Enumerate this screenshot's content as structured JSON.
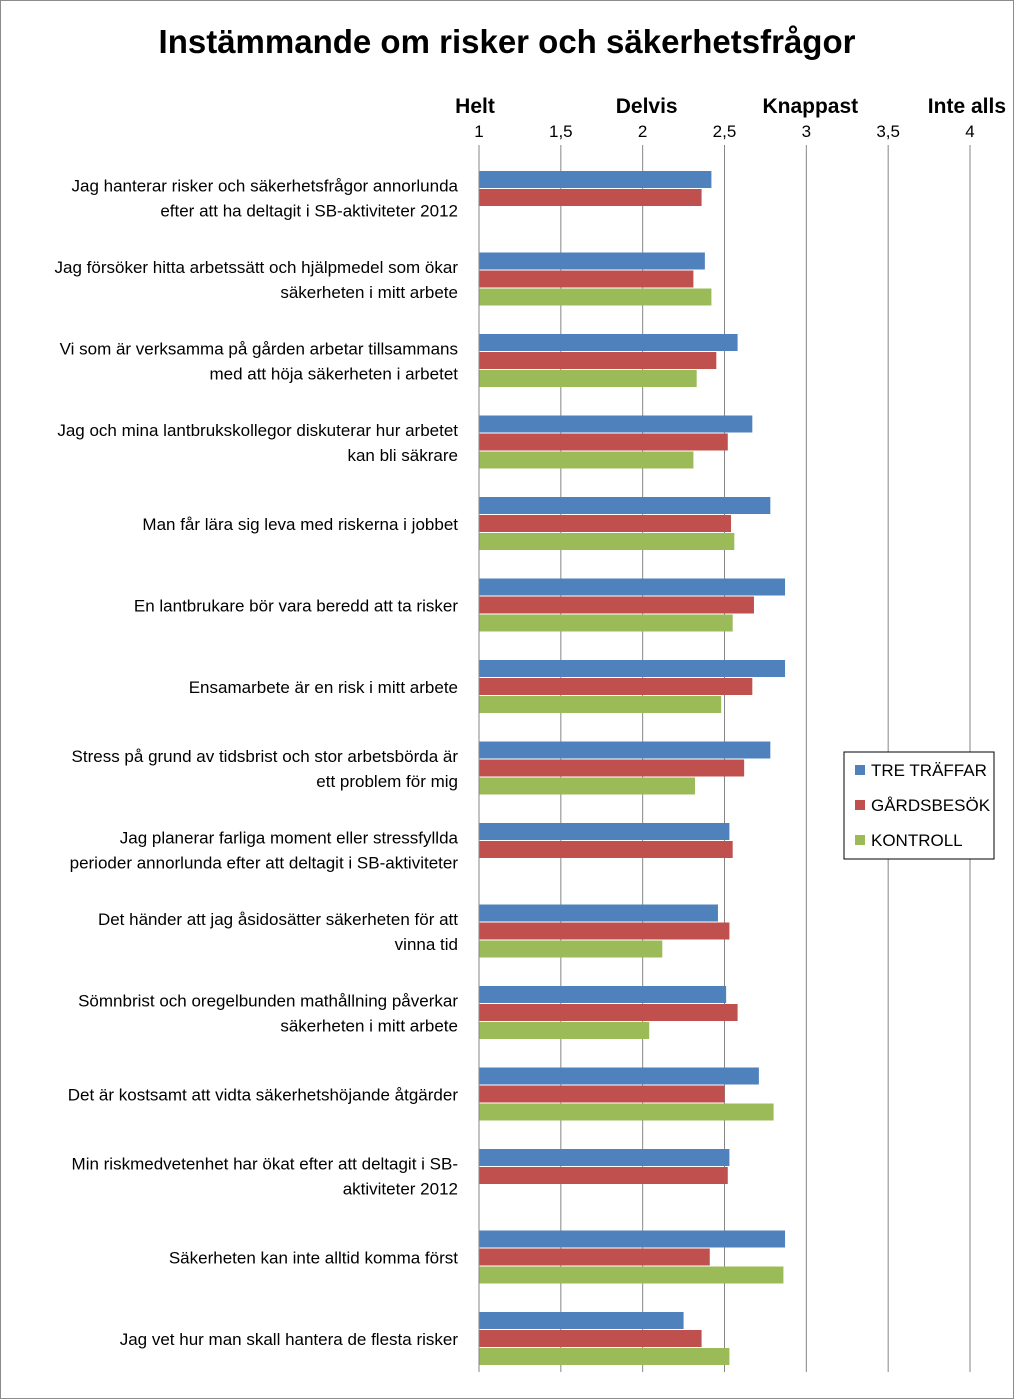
{
  "chart_data": {
    "type": "bar",
    "orientation": "horizontal",
    "title": "Instämmande om risker och säkerhetsfrågor",
    "axis": {
      "min": 1,
      "max": 4,
      "ticks": [
        1,
        1.5,
        2,
        2.5,
        3,
        3.5,
        4
      ],
      "tick_labels": [
        "1",
        "1,5",
        "2",
        "2,5",
        "3",
        "3,5",
        "4"
      ],
      "position": "top",
      "gridlines": true,
      "anchor_labels": [
        {
          "value": 1,
          "label": "Helt"
        },
        {
          "value": 2,
          "label": "Delvis"
        },
        {
          "value": 3,
          "label": "Knappast"
        },
        {
          "value": 4,
          "label": "Inte alls"
        }
      ]
    },
    "categories": [
      [
        "Jag hanterar risker och säkerhetsfrågor annorlunda",
        "efter att ha deltagit i SB-aktiviteter 2012"
      ],
      [
        "Jag försöker hitta arbetssätt och hjälpmedel som ökar",
        "säkerheten i mitt arbete"
      ],
      [
        "Vi som är verksamma på gården arbetar tillsammans",
        "med att höja säkerheten i arbetet"
      ],
      [
        "Jag och mina lantbrukskollegor diskuterar hur arbetet",
        "kan bli säkrare"
      ],
      [
        "Man får lära sig leva med riskerna i jobbet"
      ],
      [
        "En lantbrukare bör vara beredd att ta risker"
      ],
      [
        "Ensamarbete är en risk i mitt arbete"
      ],
      [
        "Stress på grund av tidsbrist och stor arbetsbörda är",
        "ett problem för mig"
      ],
      [
        "Jag planerar farliga moment eller stressfyllda",
        "perioder annorlunda efter att deltagit i SB-aktiviteter"
      ],
      [
        "Det händer att jag åsidosätter säkerheten för att",
        "vinna tid"
      ],
      [
        "Sömnbrist och oregelbunden mathållning påverkar",
        "säkerheten i mitt arbete"
      ],
      [
        "Det är kostsamt att vidta säkerhetshöjande åtgärder"
      ],
      [
        "Min riskmedvetenhet har ökat efter att deltagit i SB-",
        "aktiviteter 2012"
      ],
      [
        "Säkerheten kan inte alltid komma först"
      ],
      [
        "Jag vet hur man skall hantera de flesta risker"
      ]
    ],
    "series": [
      {
        "name": "TRE TRÄFFAR",
        "color": "#4f81bd",
        "values": [
          2.42,
          2.38,
          2.58,
          2.67,
          2.78,
          2.87,
          2.87,
          2.78,
          2.53,
          2.46,
          2.51,
          2.71,
          2.53,
          2.87,
          2.25
        ]
      },
      {
        "name": "GÅRDSBESÖK",
        "color": "#c0504d",
        "values": [
          2.36,
          2.31,
          2.45,
          2.52,
          2.54,
          2.68,
          2.67,
          2.62,
          2.55,
          2.53,
          2.58,
          2.5,
          2.52,
          2.41,
          2.36
        ]
      },
      {
        "name": "KONTROLL",
        "color": "#9bbb59",
        "values": [
          null,
          2.42,
          2.33,
          2.31,
          2.56,
          2.55,
          2.48,
          2.32,
          null,
          2.12,
          2.04,
          2.8,
          null,
          2.86,
          2.53
        ]
      }
    ],
    "legend": {
      "position": "right"
    }
  }
}
